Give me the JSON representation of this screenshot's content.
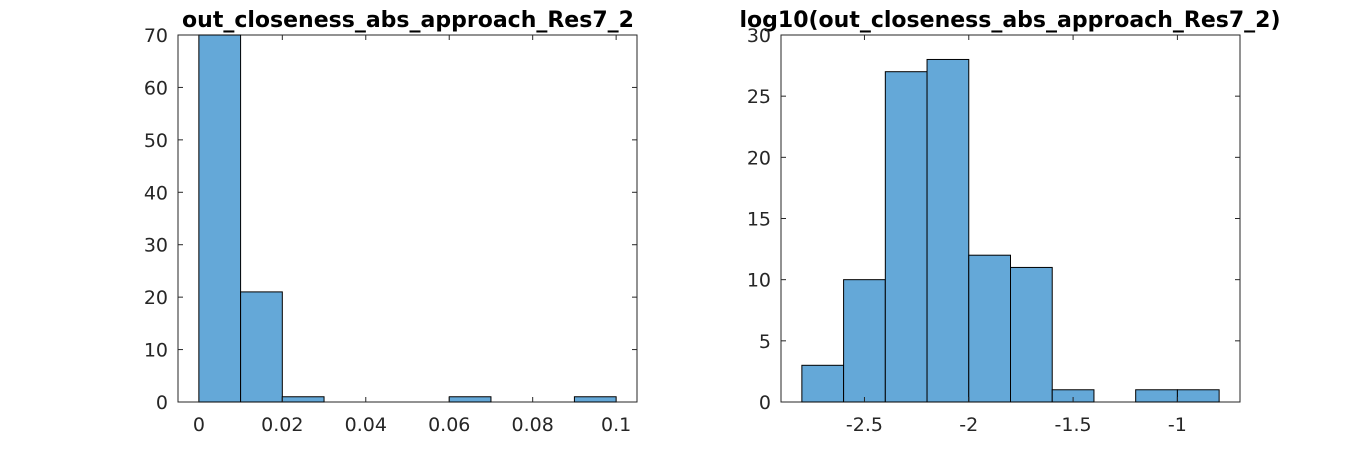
{
  "colors": {
    "bar_fill": "#64a8d8",
    "bar_edge": "#000000",
    "axis": "#262626"
  },
  "chart_data": [
    {
      "type": "bar",
      "title": "out_closeness_abs_approach_Res7_2",
      "xlabel": "",
      "ylabel": "",
      "xlim": [
        -0.005,
        0.105
      ],
      "ylim": [
        0,
        70
      ],
      "bin_edges": [
        0,
        0.01,
        0.02,
        0.03,
        0.04,
        0.05,
        0.06,
        0.07,
        0.08,
        0.09,
        0.1
      ],
      "values": [
        70,
        21,
        1,
        0,
        0,
        0,
        1,
        0,
        0,
        1
      ],
      "x_ticks": [
        0,
        0.02,
        0.04,
        0.06,
        0.08,
        0.1
      ],
      "x_tick_labels": [
        "0",
        "0.02",
        "0.04",
        "0.06",
        "0.08",
        "0.1"
      ],
      "y_ticks": [
        0,
        10,
        20,
        30,
        40,
        50,
        60,
        70
      ],
      "y_tick_labels": [
        "0",
        "10",
        "20",
        "30",
        "40",
        "50",
        "60",
        "70"
      ],
      "grid": false
    },
    {
      "type": "bar",
      "title": "log10(out_closeness_abs_approach_Res7_2)",
      "xlabel": "",
      "ylabel": "",
      "xlim": [
        -2.9,
        -0.7
      ],
      "ylim": [
        0,
        30
      ],
      "bin_edges": [
        -2.8,
        -2.6,
        -2.4,
        -2.2,
        -2.0,
        -1.8,
        -1.6,
        -1.4,
        -1.2,
        -1.0,
        -0.8
      ],
      "values": [
        3,
        10,
        27,
        28,
        12,
        11,
        1,
        0,
        1,
        1
      ],
      "x_ticks": [
        -2.5,
        -2,
        -1.5,
        -1
      ],
      "x_tick_labels": [
        "-2.5",
        "-2",
        "-1.5",
        "-1"
      ],
      "y_ticks": [
        0,
        5,
        10,
        15,
        20,
        25,
        30
      ],
      "y_tick_labels": [
        "0",
        "5",
        "10",
        "15",
        "20",
        "25",
        "30"
      ],
      "grid": false
    }
  ]
}
